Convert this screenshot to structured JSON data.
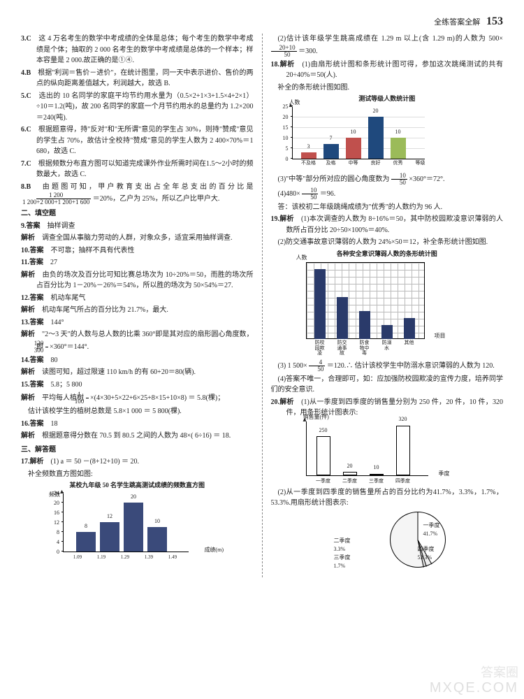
{
  "header": {
    "title": "全练答案全解",
    "page": "153"
  },
  "left": {
    "q3": {
      "num": "3.C",
      "text": "这 4 万名考生的数学中考成绩的全体是总体；每个考生的数学中考成绩是个体；抽取的 2 000 名考生的数学中考成绩是总体的一个样本；样本容量是 2 000.故正确的是①④."
    },
    "q4": {
      "num": "4.B",
      "text": "根据\"利润＝售价－进价\"，在统计图里，同一天中表示进价、售价的两点的纵向距离差值越大，利润越大，故选 B."
    },
    "q5": {
      "num": "5.C",
      "text": "选出的 10 名同学的家庭平均节约用水量为（0.5×2+1×3+1.5×4+2×1）÷10＝1.2(吨)，故 200 名同学的家庭一个月节约用水的总量约为 1.2×200＝240(吨)."
    },
    "q6": {
      "num": "6.C",
      "text": "根据题意得，持\"反对\"和\"无所谓\"意见的学生占 30%，则持\"赞成\"意见的学生占 70%，故估计全校持\"赞成\"意见的学生人数为 2 400×70%＝1 680，故选 C."
    },
    "q7": {
      "num": "7.C",
      "text": "根据频数分布直方图可以知道完成课外作业所需时间在1.5～2小时的频数最大，故选 C."
    },
    "q8": {
      "num": "8.B",
      "text_a": "由题图可知，甲户教育支出占全年总支出的百分比是",
      "frac_n": "1 200",
      "frac_d": "1 200+2 000+1 200+1 600",
      "text_b": "＝20%，乙户为 25%，所以乙户比甲户大."
    },
    "sec2": "二、填空题",
    "q9": {
      "num": "9.答案",
      "ans": "抽样调查",
      "jx": "解析",
      "jx_text": "调查全国从事脑力劳动的人群，对象众多，适宜采用抽样调查."
    },
    "q10": {
      "num": "10.答案",
      "ans": "不可靠；抽样不具有代表性"
    },
    "q11": {
      "num": "11.答案",
      "ans": "27",
      "jx": "解析",
      "jx_text": "由负的场次及百分比可知比赛总场次为 10÷20%＝50，而胜的场次所占百分比为 1－20%－26%＝54%，所以胜的场次为 50×54%＝27."
    },
    "q12": {
      "num": "12.答案",
      "ans": "机动车尾气",
      "jx": "解析",
      "jx_text": "机动车尾气所占的百分比为 21.7%，最大."
    },
    "q13": {
      "num": "13.答案",
      "ans": "144°",
      "jx": "解析",
      "jx_text_a": "\"2～3 天\"的人数与总人数的比乘 360°即是其对应的扇形圆心角度数，即",
      "frac_n": "120",
      "frac_d": "300",
      "jx_text_b": "×360°＝144°."
    },
    "q14": {
      "num": "14.答案",
      "ans": "80",
      "jx": "解析",
      "jx_text": "读图可知，超过限速 110 km/h 的有 60+20＝80(辆)."
    },
    "q15": {
      "num": "15.答案",
      "ans": "5.8；5 800",
      "jx": "解析",
      "jx_text_a": "平均每人植树 ",
      "frac_n": "1",
      "frac_d": "100",
      "jx_text_b": "×(4×30+5×22+6×25+8×15+10×8) ＝ 5.8(棵)；",
      "jx_text_c": "估计该校学生的植树总数是 5.8×1 000 ＝ 5 800(棵)."
    },
    "q16": {
      "num": "16.答案",
      "ans": "18",
      "jx": "解析",
      "jx_text": "根据题意得分数在 70.5 到 80.5 之间的人数为 48×( 6÷16) ＝ 18."
    },
    "sec3": "三、解答题",
    "q17": {
      "num": "17.解析",
      "text1": "(1) a ＝ 50 －(8+12+10) ＝ 20.",
      "text2": "补全频数直方图如图:"
    },
    "chart17": {
      "title": "某校九年级 50 名学生跳高测试成绩的频数直方图",
      "ylabel": "频数",
      "xlabel": "成绩(m)",
      "yticks": [
        "0",
        "4",
        "8",
        "12",
        "16",
        "20",
        "24"
      ],
      "xticks": [
        "1.09",
        "1.19",
        "1.29",
        "1.39",
        "1.49"
      ],
      "bars": [
        {
          "val": 8,
          "label": "8"
        },
        {
          "val": 12,
          "label": "12"
        },
        {
          "val": 20,
          "label": "20"
        },
        {
          "val": 10,
          "label": "10"
        }
      ],
      "bar_color": "#3a4a7a"
    }
  },
  "right": {
    "r17b": {
      "text_a": "(2)估计该年级学生跳高成绩在 1.29 m 以上(含 1.29 m)的人数为 500×",
      "frac_n": "20+10",
      "frac_d": "50",
      "text_b": "＝300."
    },
    "q18": {
      "num": "18.解析",
      "text1": "(1)由扇形统计图和条形统计图可得，参加这次跳绳测试的共有 20÷40%＝50(人).",
      "text2": "补全的条形统计图如图."
    },
    "chart18": {
      "title": "测试等级人数统计图",
      "ylabel": "人数",
      "yticks": [
        "0",
        "5",
        "10",
        "15",
        "20",
        "25"
      ],
      "xcats": [
        "不及格",
        "及格",
        "中等",
        "良好",
        "优秀",
        "等级"
      ],
      "bars": [
        {
          "val": 3,
          "label": "3",
          "color": "#c0504d"
        },
        {
          "val": 7,
          "label": "7",
          "color": "#1f497d"
        },
        {
          "val": 10,
          "label": "10",
          "color": "#c0504d"
        },
        {
          "val": 20,
          "label": "20",
          "color": "#1f497d"
        },
        {
          "val": 10,
          "label": "10",
          "color": "#9bbb59"
        }
      ]
    },
    "r18c": {
      "text_a": "(3)\"中等\"部分所对应的圆心角度数为",
      "frac_n": "10",
      "frac_d": "50",
      "text_b": "×360°＝72°."
    },
    "r18d": {
      "text_a": "(4)480×",
      "frac_n": "10",
      "frac_d": "50",
      "text_b": "＝96."
    },
    "r18e": "答：该校初二年级跳绳成绩为\"优秀\"的人数约为 96 人.",
    "q19": {
      "num": "19.解析",
      "text1": "(1)本次调查的人数为 8÷16%＝50，其中防校园欺凌意识薄弱的人数所占百分比 20÷50×100%＝40%.",
      "text2": "(2)防交通事故意识薄弱的人数为 24%×50＝12，补全条形统计图如图."
    },
    "chart19": {
      "title": "各种安全意识薄弱人数的条形统计图",
      "ylabel": "人数",
      "xlabel": "项目",
      "xcats": [
        "防校园欺凌",
        "防交通事故",
        "防食物中毒",
        "防溺水",
        "其他"
      ],
      "bars": [
        20,
        12,
        8,
        4,
        6
      ]
    },
    "r19c": {
      "text_a": "(3) 1 500×",
      "frac_n": "4",
      "frac_d": "50",
      "text_b": "＝120.∴ 估计该校学生中防溺水意识薄弱的人数为 120."
    },
    "r19d": "(4)答案不唯一，合理即可，如：应加强防校园欺凌的宣传力度，培养同学们的安全意识.",
    "q20": {
      "num": "20.解析",
      "text1": "(1)从一季度到四季度的销售量分别为 250 件，20 件，10 件，320 件，用条形统计图表示:"
    },
    "chart20": {
      "ylabel": "销售量(件)",
      "xlabel": "季度",
      "xcats": [
        "一季度",
        "二季度",
        "三季度",
        "四季度"
      ],
      "bars": [
        {
          "val": 250,
          "label": "250"
        },
        {
          "val": 20,
          "label": "20"
        },
        {
          "val": 10,
          "label": "10"
        },
        {
          "val": 320,
          "label": "320"
        }
      ],
      "bar_color": "#333"
    },
    "r20b": "(2)从一季度到四季度的销售量所占的百分比约为41.7%，3.3%，1.7%，53.3%.用扇形统计图表示:",
    "pie20": {
      "slices": [
        {
          "label": "一季度",
          "pct": "41.7%",
          "angle": 150
        },
        {
          "label": "二季度",
          "pct": "3.3%",
          "angle": 12
        },
        {
          "label": "三季度",
          "pct": "1.7%",
          "angle": 6
        },
        {
          "label": "四季度",
          "pct": "53.3%",
          "angle": 192
        }
      ]
    }
  },
  "watermark1": "答案圈",
  "watermark2": "MXQE.COM"
}
